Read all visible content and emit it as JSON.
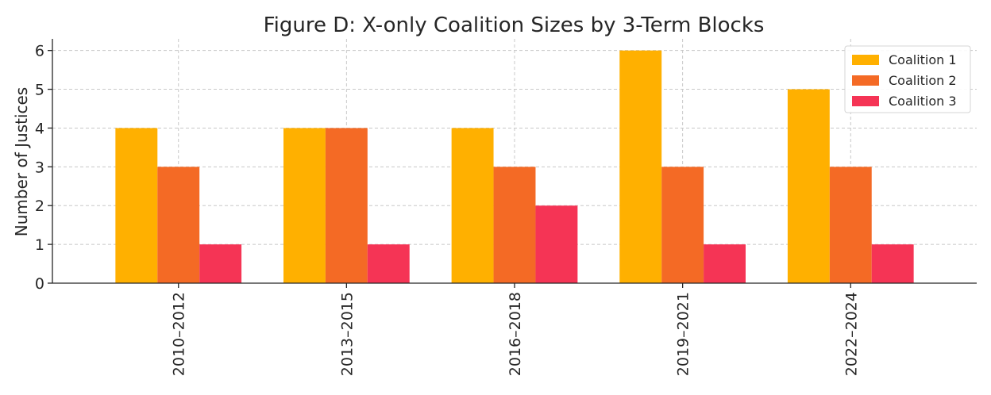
{
  "chart_data": {
    "type": "bar",
    "title": "Figure D: X-only Coalition Sizes by 3-Term Blocks",
    "xlabel": "",
    "ylabel": "Number of Justices",
    "categories": [
      "2010–2012",
      "2013–2015",
      "2016–2018",
      "2019–2021",
      "2022–2024"
    ],
    "series": [
      {
        "name": "Coalition 1",
        "color": "#FFB000",
        "values": [
          4,
          4,
          4,
          6,
          5
        ]
      },
      {
        "name": "Coalition 2",
        "color": "#F46A25",
        "values": [
          3,
          4,
          3,
          3,
          3
        ]
      },
      {
        "name": "Coalition 3",
        "color": "#F53455",
        "values": [
          1,
          1,
          2,
          1,
          1
        ]
      }
    ],
    "ylim": [
      0,
      6.3
    ],
    "yticks": [
      0,
      1,
      2,
      3,
      4,
      5,
      6
    ],
    "grid": true,
    "legend_position": "top-right"
  }
}
